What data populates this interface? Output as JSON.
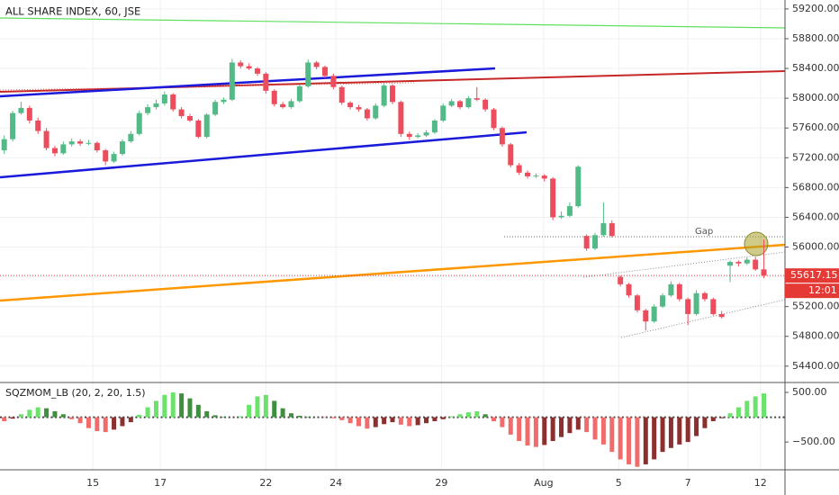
{
  "chart_data": [
    {
      "type": "candlestick",
      "title": "ALL SHARE INDEX, 60, JSE",
      "up_color": "#53b987",
      "down_color": "#eb4d5c",
      "grid": true,
      "xlim": [
        -0.5,
        92.5
      ],
      "ylim": [
        54180,
        59320
      ],
      "yticks": [
        {
          "value": 59200,
          "label": "59200.00"
        },
        {
          "value": 58800,
          "label": "58800.00"
        },
        {
          "value": 58400,
          "label": "58400.00"
        },
        {
          "value": 58000,
          "label": "58000.00"
        },
        {
          "value": 57600,
          "label": "57600.00"
        },
        {
          "value": 57200,
          "label": "57200.00"
        },
        {
          "value": 56800,
          "label": "56800.00"
        },
        {
          "value": 56400,
          "label": "56400.00"
        },
        {
          "value": 56000,
          "label": "56000.00"
        },
        {
          "value": 55600,
          "label": "55600.00"
        },
        {
          "value": 55200,
          "label": "55200.00"
        },
        {
          "value": 54800,
          "label": "54800.00"
        },
        {
          "value": 54400,
          "label": "54400.00"
        }
      ],
      "xticks": [
        {
          "value": 10.5,
          "label": "15"
        },
        {
          "value": 18.5,
          "label": "17"
        },
        {
          "value": 31,
          "label": "22"
        },
        {
          "value": 39.3,
          "label": "24"
        },
        {
          "value": 51.8,
          "label": "29"
        },
        {
          "value": 63.9,
          "label": "Aug"
        },
        {
          "value": 72.8,
          "label": "5"
        },
        {
          "value": 81,
          "label": "7"
        },
        {
          "value": 89.6,
          "label": "12"
        }
      ],
      "last_price": 55617.15,
      "last_price_color": "#e53935",
      "countdown": "12:01",
      "annotation": "Gap",
      "ohlc": [
        [
          57300,
          57500,
          57250,
          57450
        ],
        [
          57450,
          57830,
          57420,
          57800
        ],
        [
          57800,
          57950,
          57780,
          57870
        ],
        [
          57870,
          57900,
          57660,
          57700
        ],
        [
          57700,
          57740,
          57520,
          57560
        ],
        [
          57560,
          57600,
          57300,
          57330
        ],
        [
          57330,
          57360,
          57220,
          57260
        ],
        [
          57260,
          57420,
          57240,
          57380
        ],
        [
          57380,
          57460,
          57350,
          57420
        ],
        [
          57420,
          57450,
          57360,
          57390
        ],
        [
          57390,
          57440,
          57370,
          57400
        ],
        [
          57400,
          57420,
          57270,
          57300
        ],
        [
          57300,
          57320,
          57100,
          57150
        ],
        [
          57150,
          57280,
          57130,
          57250
        ],
        [
          57250,
          57450,
          57230,
          57420
        ],
        [
          57420,
          57560,
          57400,
          57520
        ],
        [
          57520,
          57830,
          57500,
          57800
        ],
        [
          57800,
          57920,
          57770,
          57880
        ],
        [
          57880,
          57980,
          57850,
          57930
        ],
        [
          57930,
          58090,
          57900,
          58050
        ],
        [
          58050,
          58070,
          57820,
          57850
        ],
        [
          57850,
          57880,
          57730,
          57760
        ],
        [
          57760,
          57790,
          57680,
          57700
        ],
        [
          57700,
          57720,
          57460,
          57480
        ],
        [
          57480,
          57800,
          57460,
          57780
        ],
        [
          57780,
          57980,
          57760,
          57950
        ],
        [
          57950,
          58010,
          57920,
          57980
        ],
        [
          57980,
          58530,
          57960,
          58480
        ],
        [
          58480,
          58510,
          58400,
          58430
        ],
        [
          58430,
          58470,
          58380,
          58400
        ],
        [
          58400,
          58420,
          58300,
          58330
        ],
        [
          58330,
          58350,
          58060,
          58100
        ],
        [
          58100,
          58120,
          57890,
          57920
        ],
        [
          57920,
          57950,
          57860,
          57880
        ],
        [
          57880,
          57990,
          57860,
          57960
        ],
        [
          57960,
          58190,
          57940,
          58160
        ],
        [
          58160,
          58520,
          58140,
          58480
        ],
        [
          58480,
          58500,
          58390,
          58420
        ],
        [
          58420,
          58440,
          58270,
          58300
        ],
        [
          58300,
          58330,
          58120,
          58150
        ],
        [
          58150,
          58170,
          57910,
          57940
        ],
        [
          57940,
          57960,
          57850,
          57880
        ],
        [
          57880,
          57910,
          57820,
          57850
        ],
        [
          57850,
          57870,
          57700,
          57730
        ],
        [
          57730,
          57930,
          57710,
          57900
        ],
        [
          57900,
          58200,
          57880,
          58170
        ],
        [
          58170,
          58190,
          57920,
          57950
        ],
        [
          57950,
          57970,
          57480,
          57520
        ],
        [
          57520,
          57550,
          57440,
          57480
        ],
        [
          57480,
          57530,
          57460,
          57500
        ],
        [
          57500,
          57570,
          57480,
          57540
        ],
        [
          57540,
          57720,
          57520,
          57700
        ],
        [
          57700,
          57930,
          57680,
          57900
        ],
        [
          57900,
          57990,
          57880,
          57960
        ],
        [
          57960,
          57980,
          57850,
          57880
        ],
        [
          57880,
          58030,
          57860,
          58000
        ],
        [
          58000,
          58150,
          57960,
          57980
        ],
        [
          57980,
          58000,
          57820,
          57850
        ],
        [
          57850,
          57870,
          57570,
          57600
        ],
        [
          57600,
          57620,
          57350,
          57380
        ],
        [
          57380,
          57400,
          57070,
          57100
        ],
        [
          57100,
          57130,
          56970,
          57000
        ],
        [
          57000,
          57030,
          56920,
          56950
        ],
        [
          56950,
          56990,
          56930,
          56960
        ],
        [
          56960,
          56980,
          56880,
          56920
        ],
        [
          56920,
          56940,
          56360,
          56400
        ],
        [
          56400,
          56480,
          56380,
          56420
        ],
        [
          56420,
          56600,
          56400,
          56550
        ],
        [
          56550,
          57100,
          56530,
          57080
        ],
        [
          56150,
          56170,
          55950,
          55980
        ],
        [
          55980,
          56190,
          55960,
          56160
        ],
        [
          56160,
          56600,
          56140,
          56320
        ],
        [
          56320,
          56360,
          56130,
          56150
        ],
        [
          55600,
          55620,
          55470,
          55500
        ],
        [
          55500,
          55520,
          55320,
          55350
        ],
        [
          55350,
          55370,
          55120,
          55150
        ],
        [
          55150,
          55170,
          54880,
          55000
        ],
        [
          55000,
          55230,
          54980,
          55200
        ],
        [
          55200,
          55380,
          55180,
          55350
        ],
        [
          55350,
          55540,
          55330,
          55500
        ],
        [
          55500,
          55520,
          55270,
          55300
        ],
        [
          55300,
          55320,
          54950,
          55100
        ],
        [
          55100,
          55420,
          55080,
          55380
        ],
        [
          55380,
          55400,
          55270,
          55300
        ],
        [
          55300,
          55320,
          55080,
          55100
        ],
        [
          55100,
          55140,
          55040,
          55060
        ],
        [
          55750,
          55820,
          55530,
          55800
        ],
        [
          55800,
          55820,
          55740,
          55780
        ],
        [
          55780,
          55860,
          55760,
          55830
        ],
        [
          55830,
          55870,
          55680,
          55700
        ],
        [
          55700,
          56100,
          55580,
          55617
        ]
      ]
    },
    {
      "type": "histogram",
      "title": "SQZMOM_LB (20, 2, 20, 1.5)",
      "colors": {
        "pos_up": "#6be36b",
        "pos_down": "#3f8f3f",
        "neg_down": "#f26b6b",
        "neg_up": "#8c2f2f"
      },
      "xlim": [
        -0.5,
        92.5
      ],
      "ylim": [
        -1060,
        700
      ],
      "yticks": [
        {
          "value": 500,
          "label": "500.00"
        },
        {
          "value": -500,
          "label": "−500.00"
        }
      ],
      "values": [
        -80,
        -30,
        60,
        150,
        200,
        180,
        120,
        60,
        -40,
        -120,
        -220,
        -280,
        -300,
        -250,
        -180,
        -100,
        50,
        200,
        330,
        450,
        500,
        480,
        380,
        250,
        120,
        40,
        10,
        0,
        20,
        250,
        420,
        450,
        330,
        180,
        80,
        30,
        10,
        0,
        -10,
        -20,
        -60,
        -120,
        -180,
        -230,
        -200,
        -140,
        -100,
        -150,
        -180,
        -160,
        -120,
        -80,
        -40,
        20,
        60,
        100,
        120,
        60,
        -80,
        -200,
        -350,
        -480,
        -570,
        -600,
        -560,
        -480,
        -400,
        -320,
        -250,
        -300,
        -450,
        -550,
        -700,
        -850,
        -950,
        -1000,
        -950,
        -850,
        -700,
        -620,
        -550,
        -500,
        -380,
        -220,
        -80,
        -20,
        80,
        200,
        330,
        420,
        480
      ]
    }
  ]
}
